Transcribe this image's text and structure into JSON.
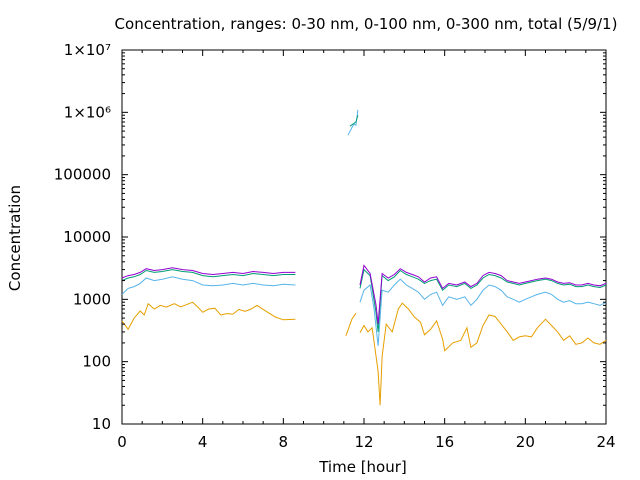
{
  "chart_data": {
    "type": "line",
    "title": "Concentration, ranges: 0-30 nm, 0-100 nm, 0-300 nm, total (5/9/1)",
    "xlabel": "Time [hour]",
    "ylabel": "Concentration",
    "xlim": [
      0,
      24
    ],
    "ylim": [
      10,
      10000000
    ],
    "yscale": "log",
    "grid": false,
    "legend": "none",
    "xticks": [
      0,
      4,
      8,
      12,
      16,
      20,
      24
    ],
    "xtick_labels": [
      "0",
      "4",
      "8",
      "12",
      "16",
      "20",
      "24"
    ],
    "yticks": [
      10,
      100,
      1000,
      10000,
      100000,
      1000000,
      10000000
    ],
    "ytick_labels": [
      "10",
      "100",
      "1000",
      "10000",
      "100000",
      "1×10⁶",
      "1×10⁷"
    ],
    "series": [
      {
        "color": "#e69f00",
        "points": [
          [
            0,
            450
          ],
          [
            0.3,
            330
          ],
          [
            0.6,
            500
          ],
          [
            0.9,
            650
          ],
          [
            1.1,
            560
          ],
          [
            1.3,
            850
          ],
          [
            1.6,
            700
          ],
          [
            1.9,
            800
          ],
          [
            2.2,
            750
          ],
          [
            2.6,
            850
          ],
          [
            2.9,
            760
          ],
          [
            3.2,
            820
          ],
          [
            3.5,
            900
          ],
          [
            3.8,
            730
          ],
          [
            4.0,
            620
          ],
          [
            4.3,
            700
          ],
          [
            4.6,
            720
          ],
          [
            4.9,
            560
          ],
          [
            5.2,
            590
          ],
          [
            5.5,
            580
          ],
          [
            5.8,
            690
          ],
          [
            6.1,
            640
          ],
          [
            6.4,
            700
          ],
          [
            6.7,
            800
          ],
          [
            7.0,
            690
          ],
          [
            7.3,
            600
          ],
          [
            7.6,
            520
          ],
          [
            8.0,
            470
          ],
          [
            8.6,
            480
          ],
          null,
          [
            11.1,
            260
          ],
          [
            11.4,
            480
          ],
          [
            11.6,
            600
          ],
          null,
          [
            11.8,
            290
          ],
          [
            12.0,
            380
          ],
          [
            12.2,
            300
          ],
          [
            12.4,
            350
          ],
          [
            12.6,
            120
          ],
          [
            12.7,
            70
          ],
          [
            12.8,
            20
          ],
          [
            12.9,
            120
          ],
          [
            13.1,
            400
          ],
          [
            13.4,
            300
          ],
          [
            13.7,
            700
          ],
          [
            13.9,
            870
          ],
          [
            14.2,
            700
          ],
          [
            14.5,
            520
          ],
          [
            14.8,
            430
          ],
          [
            15.0,
            270
          ],
          [
            15.3,
            330
          ],
          [
            15.6,
            450
          ],
          [
            15.9,
            230
          ],
          [
            16.0,
            150
          ],
          [
            16.4,
            200
          ],
          [
            16.8,
            220
          ],
          [
            17.1,
            350
          ],
          [
            17.3,
            170
          ],
          [
            17.6,
            200
          ],
          [
            17.9,
            380
          ],
          [
            18.2,
            560
          ],
          [
            18.5,
            530
          ],
          [
            18.8,
            400
          ],
          [
            19.1,
            300
          ],
          [
            19.4,
            220
          ],
          [
            19.7,
            250
          ],
          [
            20.0,
            260
          ],
          [
            20.3,
            250
          ],
          [
            20.6,
            350
          ],
          [
            21.0,
            480
          ],
          [
            21.3,
            380
          ],
          [
            21.6,
            300
          ],
          [
            21.9,
            220
          ],
          [
            22.2,
            260
          ],
          [
            22.5,
            190
          ],
          [
            22.8,
            200
          ],
          [
            23.1,
            240
          ],
          [
            23.4,
            200
          ],
          [
            23.7,
            190
          ],
          [
            24,
            220
          ]
        ]
      },
      {
        "color": "#56b4e9",
        "points": [
          [
            0,
            1200
          ],
          [
            0.3,
            1500
          ],
          [
            0.6,
            1600
          ],
          [
            0.9,
            1800
          ],
          [
            1.2,
            2200
          ],
          [
            1.6,
            2000
          ],
          [
            2.0,
            2100
          ],
          [
            2.5,
            2300
          ],
          [
            3.0,
            2100
          ],
          [
            3.5,
            2000
          ],
          [
            4.0,
            1700
          ],
          [
            4.5,
            1650
          ],
          [
            5.0,
            1700
          ],
          [
            5.5,
            1800
          ],
          [
            6.0,
            1700
          ],
          [
            6.5,
            1800
          ],
          [
            7.0,
            1700
          ],
          [
            7.5,
            1650
          ],
          [
            8.0,
            1750
          ],
          [
            8.6,
            1700
          ],
          null,
          [
            11.2,
            430000
          ],
          [
            11.5,
            650000
          ],
          [
            11.6,
            620000
          ],
          [
            11.7,
            1100000
          ],
          null,
          [
            11.8,
            900
          ],
          [
            12.0,
            1400
          ],
          [
            12.3,
            1700
          ],
          [
            12.5,
            700
          ],
          [
            12.7,
            180
          ],
          [
            12.9,
            1400
          ],
          [
            13.2,
            1300
          ],
          [
            13.5,
            1700
          ],
          [
            13.8,
            2100
          ],
          [
            14.1,
            1700
          ],
          [
            14.4,
            1500
          ],
          [
            14.7,
            1300
          ],
          [
            15.0,
            1000
          ],
          [
            15.3,
            1200
          ],
          [
            15.6,
            1300
          ],
          [
            15.9,
            800
          ],
          [
            16.2,
            1100
          ],
          [
            16.6,
            1000
          ],
          [
            17.0,
            1100
          ],
          [
            17.3,
            800
          ],
          [
            17.6,
            1000
          ],
          [
            17.9,
            1400
          ],
          [
            18.2,
            1700
          ],
          [
            18.5,
            1600
          ],
          [
            18.8,
            1400
          ],
          [
            19.1,
            1100
          ],
          [
            19.4,
            1000
          ],
          [
            19.7,
            900
          ],
          [
            20.0,
            1000
          ],
          [
            20.3,
            1100
          ],
          [
            20.6,
            1200
          ],
          [
            21.0,
            1300
          ],
          [
            21.3,
            1200
          ],
          [
            21.6,
            1000
          ],
          [
            21.9,
            900
          ],
          [
            22.2,
            950
          ],
          [
            22.5,
            850
          ],
          [
            22.8,
            850
          ],
          [
            23.1,
            900
          ],
          [
            23.4,
            850
          ],
          [
            23.7,
            800
          ],
          [
            24,
            900
          ]
        ]
      },
      {
        "color": "#009e73",
        "points": [
          [
            0,
            2000
          ],
          [
            0.3,
            2200
          ],
          [
            0.6,
            2300
          ],
          [
            0.9,
            2500
          ],
          [
            1.2,
            2900
          ],
          [
            1.6,
            2700
          ],
          [
            2.0,
            2800
          ],
          [
            2.5,
            3000
          ],
          [
            3.0,
            2800
          ],
          [
            3.5,
            2700
          ],
          [
            4.0,
            2400
          ],
          [
            4.5,
            2300
          ],
          [
            5.0,
            2400
          ],
          [
            5.5,
            2500
          ],
          [
            6.0,
            2400
          ],
          [
            6.5,
            2600
          ],
          [
            7.0,
            2500
          ],
          [
            7.5,
            2400
          ],
          [
            8.0,
            2500
          ],
          [
            8.6,
            2500
          ],
          null,
          [
            11.3,
            600000
          ],
          [
            11.6,
            700000
          ],
          [
            11.7,
            900000
          ],
          null,
          [
            11.8,
            1500
          ],
          [
            12.0,
            3000
          ],
          [
            12.3,
            2400
          ],
          [
            12.6,
            600
          ],
          [
            12.7,
            300
          ],
          [
            12.9,
            2400
          ],
          [
            13.2,
            2000
          ],
          [
            13.5,
            2300
          ],
          [
            13.8,
            2900
          ],
          [
            14.1,
            2500
          ],
          [
            14.4,
            2300
          ],
          [
            14.7,
            2100
          ],
          [
            15.0,
            1800
          ],
          [
            15.3,
            2000
          ],
          [
            15.6,
            2100
          ],
          [
            15.9,
            1400
          ],
          [
            16.2,
            1700
          ],
          [
            16.6,
            1600
          ],
          [
            17.0,
            1800
          ],
          [
            17.3,
            1500
          ],
          [
            17.6,
            1700
          ],
          [
            17.9,
            2200
          ],
          [
            18.2,
            2500
          ],
          [
            18.5,
            2400
          ],
          [
            18.8,
            2200
          ],
          [
            19.1,
            1900
          ],
          [
            19.4,
            1800
          ],
          [
            19.7,
            1700
          ],
          [
            20.0,
            1800
          ],
          [
            20.3,
            1900
          ],
          [
            20.6,
            2000
          ],
          [
            21.0,
            2100
          ],
          [
            21.3,
            2000
          ],
          [
            21.6,
            1800
          ],
          [
            21.9,
            1700
          ],
          [
            22.2,
            1750
          ],
          [
            22.5,
            1600
          ],
          [
            22.8,
            1600
          ],
          [
            23.1,
            1700
          ],
          [
            23.4,
            1600
          ],
          [
            23.7,
            1550
          ],
          [
            24,
            1700
          ]
        ]
      },
      {
        "color": "#9400d3",
        "points": [
          [
            0,
            2200
          ],
          [
            0.3,
            2400
          ],
          [
            0.6,
            2500
          ],
          [
            0.9,
            2700
          ],
          [
            1.2,
            3100
          ],
          [
            1.6,
            2900
          ],
          [
            2.0,
            3000
          ],
          [
            2.5,
            3200
          ],
          [
            3.0,
            3000
          ],
          [
            3.5,
            2900
          ],
          [
            4.0,
            2600
          ],
          [
            4.5,
            2500
          ],
          [
            5.0,
            2600
          ],
          [
            5.5,
            2700
          ],
          [
            6.0,
            2600
          ],
          [
            6.5,
            2800
          ],
          [
            7.0,
            2700
          ],
          [
            7.5,
            2600
          ],
          [
            8.0,
            2700
          ],
          [
            8.6,
            2700
          ],
          null,
          [
            11.8,
            1700
          ],
          [
            12.0,
            3500
          ],
          [
            12.3,
            2600
          ],
          [
            12.6,
            800
          ],
          [
            12.7,
            400
          ],
          [
            12.9,
            2600
          ],
          [
            13.2,
            2200
          ],
          [
            13.5,
            2500
          ],
          [
            13.8,
            3100
          ],
          [
            14.1,
            2700
          ],
          [
            14.4,
            2500
          ],
          [
            14.7,
            2300
          ],
          [
            15.0,
            1900
          ],
          [
            15.3,
            2200
          ],
          [
            15.6,
            2300
          ],
          [
            15.9,
            1500
          ],
          [
            16.2,
            1800
          ],
          [
            16.6,
            1700
          ],
          [
            17.0,
            1900
          ],
          [
            17.3,
            1600
          ],
          [
            17.6,
            1800
          ],
          [
            17.9,
            2400
          ],
          [
            18.2,
            2700
          ],
          [
            18.5,
            2600
          ],
          [
            18.8,
            2400
          ],
          [
            19.1,
            2000
          ],
          [
            19.4,
            1900
          ],
          [
            19.7,
            1800
          ],
          [
            20.0,
            1900
          ],
          [
            20.3,
            2000
          ],
          [
            20.6,
            2100
          ],
          [
            21.0,
            2200
          ],
          [
            21.3,
            2100
          ],
          [
            21.6,
            1900
          ],
          [
            21.9,
            1800
          ],
          [
            22.2,
            1850
          ],
          [
            22.5,
            1700
          ],
          [
            22.8,
            1700
          ],
          [
            23.1,
            1800
          ],
          [
            23.4,
            1700
          ],
          [
            23.7,
            1650
          ],
          [
            24,
            1800
          ]
        ]
      }
    ]
  }
}
